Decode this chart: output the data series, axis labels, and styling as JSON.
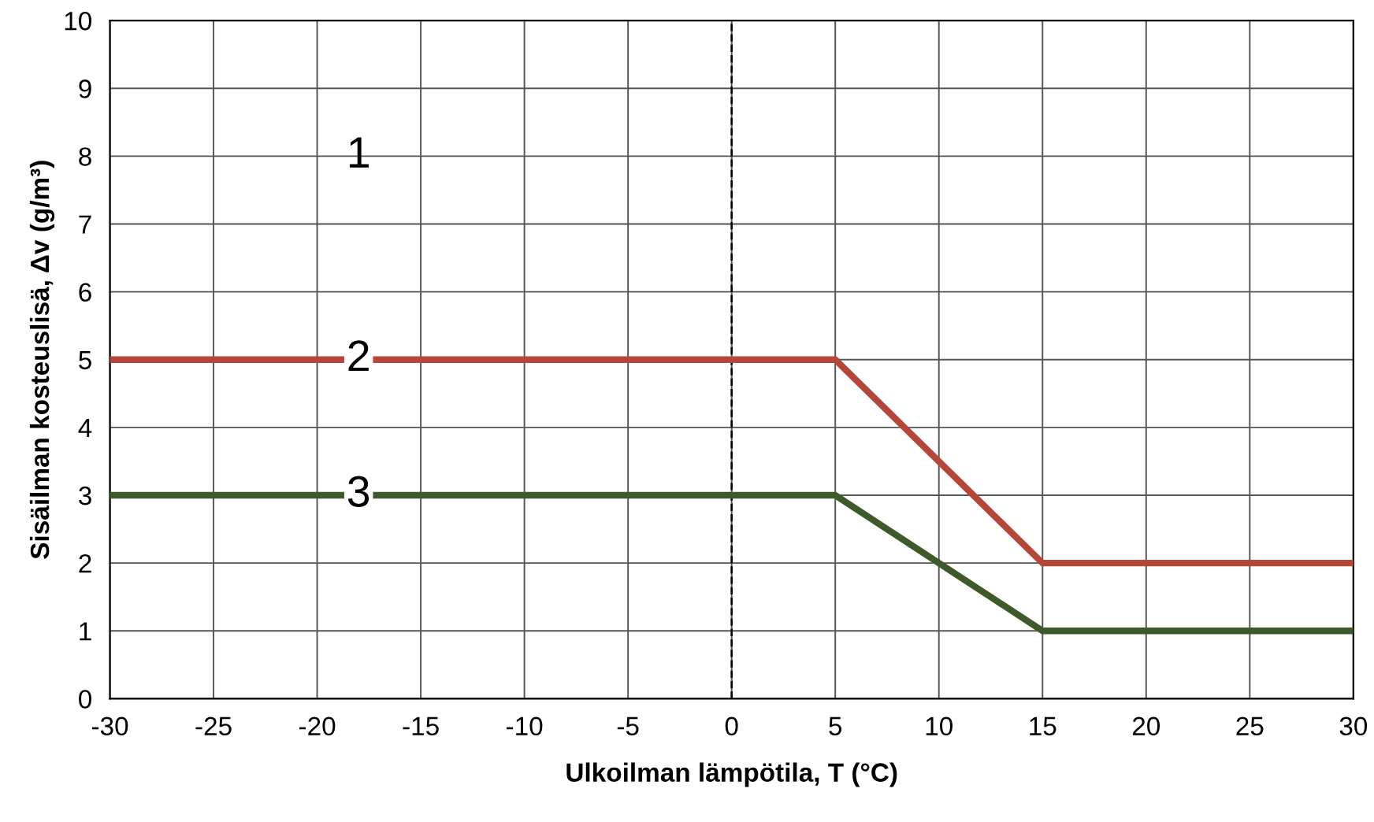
{
  "chart_data": {
    "type": "line",
    "xlabel": "Ulkoilman lämpötila, T (°C)",
    "ylabel": "Sisäilman kosteuslisä, Δv (g/m³)",
    "series": [
      {
        "name": "2",
        "color": "#b5473a",
        "x": [
          -30,
          5,
          15,
          30
        ],
        "values": [
          5,
          5,
          2,
          2
        ]
      },
      {
        "name": "3",
        "color": "#3f5a2a",
        "x": [
          -30,
          5,
          15,
          30
        ],
        "values": [
          3,
          3,
          1,
          1
        ]
      }
    ],
    "xlim": [
      -30,
      30
    ],
    "xticks": [
      -30,
      -25,
      -20,
      -15,
      -10,
      -5,
      0,
      5,
      10,
      15,
      20,
      25,
      30
    ],
    "ylim": [
      0,
      10
    ],
    "yticks": [
      0,
      1,
      2,
      3,
      4,
      5,
      6,
      7,
      8,
      9,
      10
    ],
    "grid": true,
    "marker": "none",
    "line_style": "solid",
    "legend": false,
    "ref_lines": [
      {
        "axis": "x",
        "value": 0,
        "color": "#000000",
        "line_style": "dashed"
      }
    ],
    "annotations": [
      "1"
    ]
  }
}
